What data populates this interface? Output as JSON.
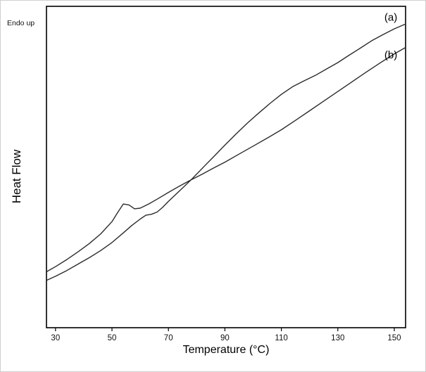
{
  "chart_data": {
    "type": "line",
    "title": "",
    "xlabel": "Temperature (°C)",
    "ylabel": "Heat Flow",
    "x_ticks": [
      30,
      50,
      70,
      90,
      110,
      130,
      150
    ],
    "xlim": [
      26.8,
      154
    ],
    "ylim": [
      0,
      1
    ],
    "grid": false,
    "legend_position": "none",
    "line_color": "#2b2b2b",
    "annotations": [
      {
        "text": "Endo up",
        "position": "top-left-outside"
      }
    ],
    "series": [
      {
        "name": "(a)",
        "label": {
          "x": 146.5,
          "y": 0.955
        },
        "x": [
          27,
          30,
          34,
          38,
          42,
          46,
          50,
          54,
          57,
          60,
          62,
          64,
          66,
          68,
          70,
          73,
          76,
          78,
          80,
          83,
          86,
          90,
          94,
          98,
          102,
          106,
          110,
          114,
          118,
          122,
          126,
          130,
          134,
          138,
          142,
          146,
          150,
          154
        ],
        "y": [
          0.148,
          0.16,
          0.178,
          0.198,
          0.218,
          0.24,
          0.265,
          0.295,
          0.318,
          0.338,
          0.35,
          0.353,
          0.36,
          0.375,
          0.393,
          0.418,
          0.443,
          0.46,
          0.478,
          0.505,
          0.532,
          0.568,
          0.603,
          0.637,
          0.668,
          0.698,
          0.726,
          0.75,
          0.768,
          0.785,
          0.805,
          0.825,
          0.848,
          0.87,
          0.893,
          0.912,
          0.93,
          0.945
        ]
      },
      {
        "name": "(b)",
        "label": {
          "x": 146.5,
          "y": 0.838
        },
        "x": [
          27,
          30,
          34,
          38,
          42,
          46,
          50,
          52,
          54,
          56,
          58,
          60,
          63,
          66,
          70,
          74,
          78,
          82,
          86,
          90,
          95,
          100,
          105,
          110,
          115,
          120,
          125,
          130,
          135,
          140,
          145,
          150,
          154
        ],
        "y": [
          0.175,
          0.19,
          0.212,
          0.236,
          0.262,
          0.292,
          0.33,
          0.358,
          0.385,
          0.382,
          0.37,
          0.372,
          0.385,
          0.4,
          0.421,
          0.441,
          0.46,
          0.478,
          0.497,
          0.515,
          0.54,
          0.565,
          0.59,
          0.616,
          0.645,
          0.675,
          0.705,
          0.735,
          0.765,
          0.795,
          0.824,
          0.852,
          0.872
        ]
      }
    ]
  }
}
